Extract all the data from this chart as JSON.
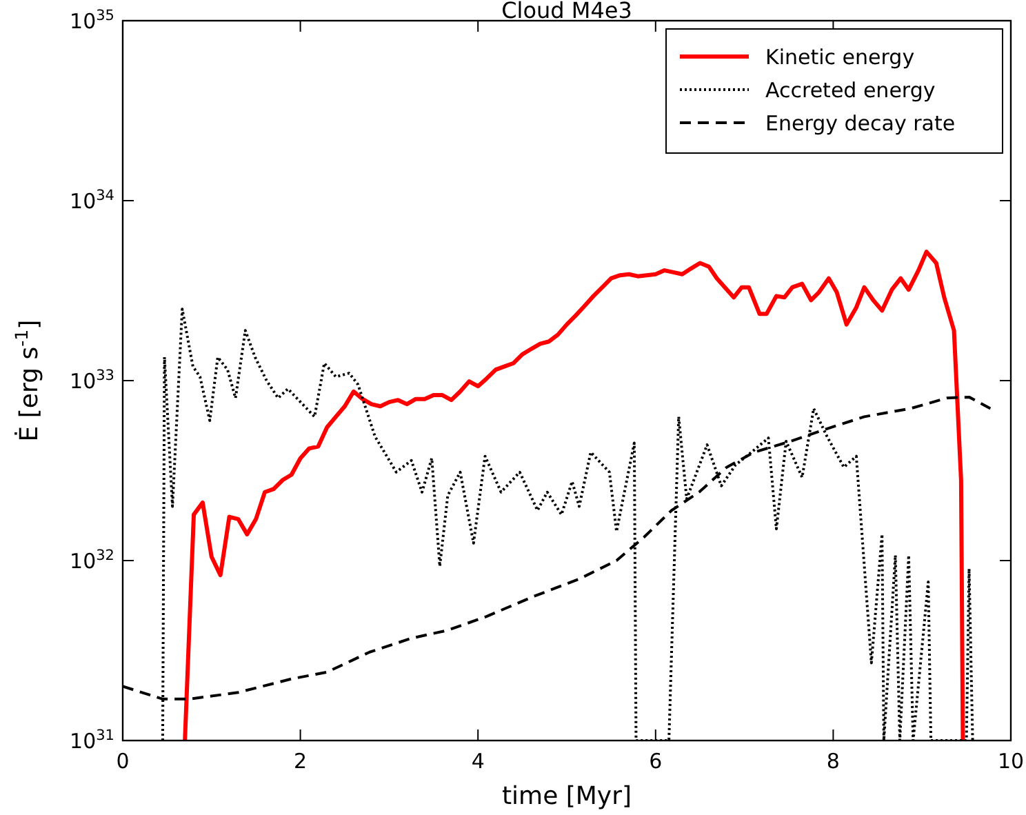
{
  "chart_data": {
    "type": "line",
    "title": "Cloud M4e3",
    "xlabel": "time [Myr]",
    "ylabel": "Ė [erg s$^{-1}$]",
    "xlim": [
      0,
      10
    ],
    "xticks": [
      0,
      2,
      4,
      6,
      8,
      10
    ],
    "ylim": [
      1e+31,
      1e+35
    ],
    "log": true,
    "yticks": [
      {
        "value": 1e+31,
        "label": "10$^{31}$"
      },
      {
        "value": 1e+32,
        "label": "10$^{32}$"
      },
      {
        "value": 1e+33,
        "label": "10$^{33}$"
      },
      {
        "value": 1e+34,
        "label": "10$^{34}$"
      },
      {
        "value": 1e+35,
        "label": "10$^{35}$"
      }
    ],
    "grid": false,
    "legend": "top right",
    "series": [
      {
        "name": "Kinetic energy",
        "color": "#ff0000",
        "line_style": "solid",
        "x": [
          0.7,
          0.8,
          0.9,
          1.0,
          1.1,
          1.2,
          1.3,
          1.4,
          1.5,
          1.6,
          1.7,
          1.8,
          1.9,
          2.0,
          2.1,
          2.2,
          2.3,
          2.4,
          2.5,
          2.6,
          2.7,
          2.8,
          2.9,
          3.0,
          3.1,
          3.2,
          3.3,
          3.4,
          3.5,
          3.6,
          3.7,
          3.8,
          3.9,
          4.0,
          4.1,
          4.2,
          4.3,
          4.4,
          4.5,
          4.6,
          4.7,
          4.8,
          4.9,
          5.0,
          5.1,
          5.2,
          5.3,
          5.4,
          5.5,
          5.6,
          5.7,
          5.8,
          5.9,
          6.0,
          6.1,
          6.2,
          6.3,
          6.4,
          6.5,
          6.6,
          6.69,
          6.88,
          6.97,
          7.05,
          7.17,
          7.25,
          7.36,
          7.45,
          7.54,
          7.65,
          7.75,
          7.84,
          7.95,
          8.04,
          8.15,
          8.26,
          8.35,
          8.45,
          8.55,
          8.66,
          8.76,
          8.85,
          8.96,
          9.05,
          9.16,
          9.25,
          9.36,
          9.44,
          9.46
        ],
        "values": [
          1e+31,
          1.8e+32,
          2.1e+32,
          1.05e+32,
          8.3e+31,
          1.75e+32,
          1.7e+32,
          1.4e+32,
          1.7e+32,
          2.4e+32,
          2.5e+32,
          2.8e+32,
          3e+32,
          3.7e+32,
          4.2e+32,
          4.3e+32,
          5.5e+32,
          6.3e+32,
          7.2e+32,
          8.7e+32,
          7.9e+32,
          7.4e+32,
          7.2e+32,
          7.6e+32,
          7.8e+32,
          7.4e+32,
          7.9e+32,
          7.9e+32,
          8.3e+32,
          8.3e+32,
          7.8e+32,
          8.7e+32,
          9.9e+32,
          9.3e+32,
          1.03e+33,
          1.15e+33,
          1.2e+33,
          1.25e+33,
          1.4e+33,
          1.5e+33,
          1.6e+33,
          1.65e+33,
          1.8e+33,
          2.05e+33,
          2.3e+33,
          2.6e+33,
          2.95e+33,
          3.3e+33,
          3.7e+33,
          3.85e+33,
          3.9e+33,
          3.8e+33,
          3.85e+33,
          3.9e+33,
          4.1e+33,
          4e+33,
          3.9e+33,
          4.2e+33,
          4.5e+33,
          4.3e+33,
          3.7e+33,
          2.9e+33,
          3.3e+33,
          3.3e+33,
          2.35e+33,
          2.35e+33,
          2.95e+33,
          2.9e+33,
          3.3e+33,
          3.45e+33,
          2.8e+33,
          3.1e+33,
          3.7e+33,
          3.1e+33,
          2.05e+33,
          2.55e+33,
          3.3e+33,
          2.8e+33,
          2.45e+33,
          3.2e+33,
          3.7e+33,
          3.2e+33,
          4.1e+33,
          5.2e+33,
          4.5e+33,
          2.9e+33,
          1.9e+33,
          2.8e+32,
          1e+31
        ]
      },
      {
        "name": "Accreted energy",
        "color": "#000000",
        "line_style": "dotted",
        "x": [
          0.45,
          0.47,
          0.56,
          0.67,
          0.79,
          0.87,
          0.98,
          1.07,
          1.18,
          1.27,
          1.38,
          1.49,
          1.62,
          1.75,
          1.86,
          2.16,
          2.27,
          2.4,
          2.55,
          2.65,
          2.84,
          3.08,
          3.25,
          3.37,
          3.48,
          3.57,
          3.66,
          3.8,
          3.95,
          4.08,
          4.26,
          4.47,
          4.67,
          4.78,
          4.94,
          5.06,
          5.14,
          5.27,
          5.48,
          5.56,
          5.76,
          5.78,
          6.15,
          6.26,
          6.35,
          6.58,
          6.74,
          6.9,
          7.08,
          7.27,
          7.36,
          7.47,
          7.65,
          7.78,
          7.93,
          8.12,
          8.26,
          8.43,
          8.55,
          8.57,
          8.7,
          8.75,
          8.85,
          8.9,
          9.07,
          9.1,
          9.5,
          9.53,
          9.57
        ],
        "values": [
          1e+31,
          1.35e+33,
          2e+32,
          2.5e+33,
          1.2e+33,
          1.05e+33,
          6e+32,
          1.35e+33,
          1.15e+33,
          8e+32,
          1.9e+33,
          1.35e+33,
          1e+33,
          8e+32,
          9e+32,
          6.3e+32,
          1.25e+33,
          1.05e+33,
          1.1e+33,
          9.5e+32,
          4.9e+32,
          3.1e+32,
          3.6e+32,
          2.4e+32,
          3.7e+32,
          9.3e+31,
          2.3e+32,
          3.1e+32,
          1.25e+32,
          3.8e+32,
          2.4e+32,
          3.1e+32,
          1.9e+32,
          2.4e+32,
          1.8e+32,
          2.75e+32,
          2e+32,
          4e+32,
          3.1e+32,
          1.45e+32,
          4.5e+32,
          1e+31,
          1e+31,
          6.3e+32,
          2.2e+32,
          4.4e+32,
          2.6e+32,
          3.4e+32,
          4e+32,
          4.8e+32,
          1.5e+32,
          4.6e+32,
          2.9e+32,
          7e+32,
          4.9e+32,
          3.3e+32,
          3.8e+32,
          2.7e+31,
          1.4e+32,
          1e+31,
          1.07e+32,
          1e+31,
          1.07e+32,
          1e+31,
          7.6e+31,
          1e+31,
          1e+31,
          9e+31,
          1e+31
        ]
      },
      {
        "name": "Energy decay rate",
        "color": "#000000",
        "line_style": "dashed",
        "x": [
          0,
          0.45,
          0.75,
          1.3,
          1.9,
          2.3,
          2.78,
          3.25,
          3.66,
          4.1,
          4.62,
          5.14,
          5.56,
          5.87,
          6.18,
          6.49,
          6.8,
          7.11,
          7.52,
          7.93,
          8.35,
          8.87,
          9.28,
          9.53,
          9.77
        ],
        "values": [
          2e+31,
          1.7e+31,
          1.7e+31,
          1.85e+31,
          2.2e+31,
          2.4e+31,
          3.1e+31,
          3.7e+31,
          4.1e+31,
          4.9e+31,
          6.3e+31,
          7.9e+31,
          1e+32,
          1.35e+32,
          1.9e+32,
          2.4e+32,
          3.3e+32,
          4e+32,
          4.6e+32,
          5.4e+32,
          6.3e+32,
          7e+32,
          8e+32,
          8.1e+32,
          7e+32
        ]
      }
    ]
  }
}
